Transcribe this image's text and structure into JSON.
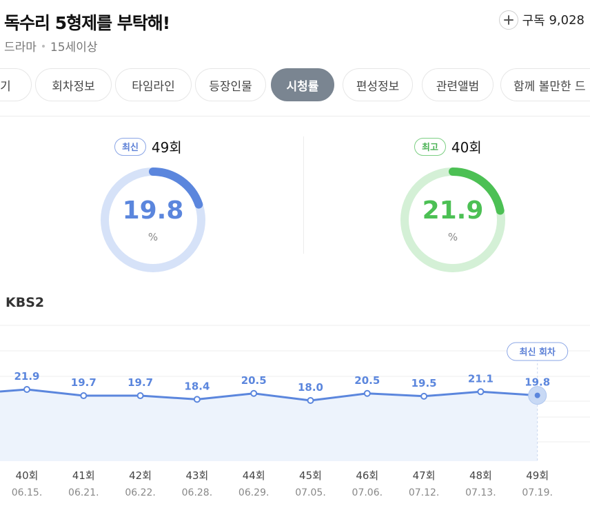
{
  "header": {
    "title": "독수리 5형제를 부탁해!",
    "genre": "드라마",
    "rating": "15세이상",
    "subscribe_label": "구독",
    "subscribe_count": "9,028"
  },
  "tabs": [
    {
      "label": "기",
      "active": false
    },
    {
      "label": "회차정보",
      "active": false
    },
    {
      "label": "타임라인",
      "active": false
    },
    {
      "label": "등장인물",
      "active": false
    },
    {
      "label": "시청률",
      "active": true
    },
    {
      "label": "편성정보",
      "active": false
    },
    {
      "label": "관련앨범",
      "active": false
    },
    {
      "label": "함께 볼만한 드",
      "active": false
    }
  ],
  "latest": {
    "badge": "최신",
    "episode": "49회",
    "value": "19.8",
    "unit": "%",
    "fraction": 0.198
  },
  "best": {
    "badge": "최고",
    "episode": "40회",
    "value": "21.9",
    "unit": "%",
    "fraction": 0.219
  },
  "colors": {
    "blue": "#5b86dd",
    "blue_track": "#d6e2f8",
    "green": "#4cc054",
    "green_track": "#d4f0d6",
    "active_tab": "#7a8591"
  },
  "chart_data": {
    "type": "line",
    "channel": "KBS2",
    "categories": [
      "40회",
      "41회",
      "42회",
      "43회",
      "44회",
      "45회",
      "46회",
      "47회",
      "48회",
      "49회"
    ],
    "dates": [
      "06.15.",
      "06.21.",
      "06.22.",
      "06.28.",
      "06.29.",
      "07.05.",
      "07.06.",
      "07.12.",
      "07.13.",
      "07.19."
    ],
    "values": [
      21.9,
      19.7,
      19.7,
      18.4,
      20.5,
      18.0,
      20.5,
      19.5,
      21.1,
      19.8
    ],
    "latest_label": "최신 회차"
  }
}
